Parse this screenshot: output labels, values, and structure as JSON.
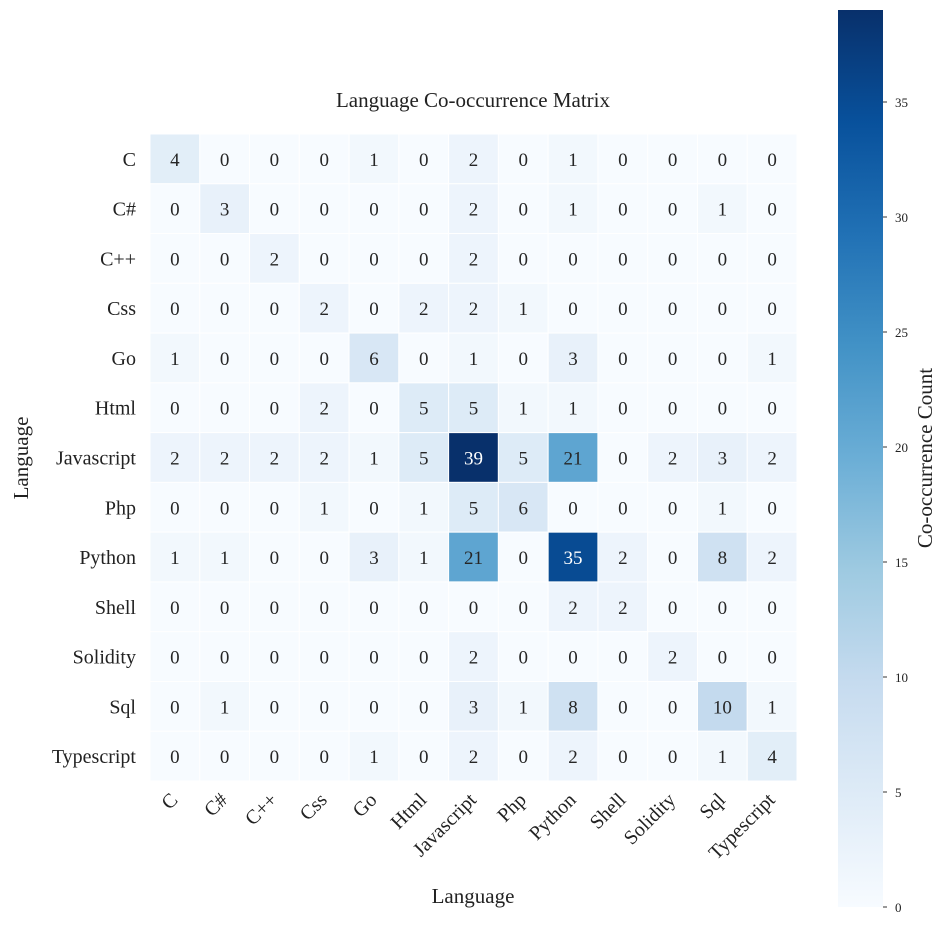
{
  "chart_data": {
    "type": "heatmap",
    "title": "Language Co-occurrence Matrix",
    "xlabel": "Language",
    "ylabel": "Language",
    "colorbar_label": "Co-occurrence Count",
    "colorbar_ticks": [
      0,
      5,
      10,
      15,
      20,
      25,
      30,
      35
    ],
    "vmin": 0,
    "vmax": 39,
    "colormap": "Blues",
    "categories": [
      "C",
      "C#",
      "C++",
      "Css",
      "Go",
      "Html",
      "Javascript",
      "Php",
      "Python",
      "Shell",
      "Solidity",
      "Sql",
      "Typescript"
    ],
    "matrix": [
      [
        4,
        0,
        0,
        0,
        1,
        0,
        2,
        0,
        1,
        0,
        0,
        0,
        0
      ],
      [
        0,
        3,
        0,
        0,
        0,
        0,
        2,
        0,
        1,
        0,
        0,
        1,
        0
      ],
      [
        0,
        0,
        2,
        0,
        0,
        0,
        2,
        0,
        0,
        0,
        0,
        0,
        0
      ],
      [
        0,
        0,
        0,
        2,
        0,
        2,
        2,
        1,
        0,
        0,
        0,
        0,
        0
      ],
      [
        1,
        0,
        0,
        0,
        6,
        0,
        1,
        0,
        3,
        0,
        0,
        0,
        1
      ],
      [
        0,
        0,
        0,
        2,
        0,
        5,
        5,
        1,
        1,
        0,
        0,
        0,
        0
      ],
      [
        2,
        2,
        2,
        2,
        1,
        5,
        39,
        5,
        21,
        0,
        2,
        3,
        2
      ],
      [
        0,
        0,
        0,
        1,
        0,
        1,
        5,
        6,
        0,
        0,
        0,
        1,
        0
      ],
      [
        1,
        1,
        0,
        0,
        3,
        1,
        21,
        0,
        35,
        2,
        0,
        8,
        2
      ],
      [
        0,
        0,
        0,
        0,
        0,
        0,
        0,
        0,
        2,
        2,
        0,
        0,
        0
      ],
      [
        0,
        0,
        0,
        0,
        0,
        0,
        2,
        0,
        0,
        0,
        2,
        0,
        0
      ],
      [
        0,
        1,
        0,
        0,
        0,
        0,
        3,
        1,
        8,
        0,
        0,
        10,
        1
      ],
      [
        0,
        0,
        0,
        0,
        1,
        0,
        2,
        0,
        2,
        0,
        0,
        1,
        4
      ]
    ]
  }
}
